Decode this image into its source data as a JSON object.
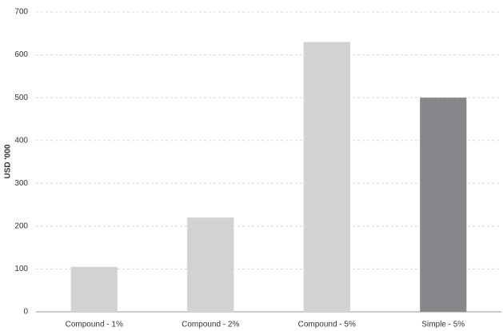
{
  "chart_data": {
    "type": "bar",
    "y_label": "USD '000",
    "categories": [
      "Compound - 1%",
      "Compound - 2%",
      "Compound - 5%",
      "Simple - 5%"
    ],
    "values": [
      105,
      220,
      630,
      500
    ],
    "colors": [
      "#d2d2d4",
      "#d2d2d4",
      "#d2d2d4",
      "#88888c"
    ],
    "ylim": [
      0,
      700
    ],
    "yticks": [
      0,
      100,
      200,
      300,
      400,
      500,
      600,
      700
    ],
    "grid": true
  }
}
